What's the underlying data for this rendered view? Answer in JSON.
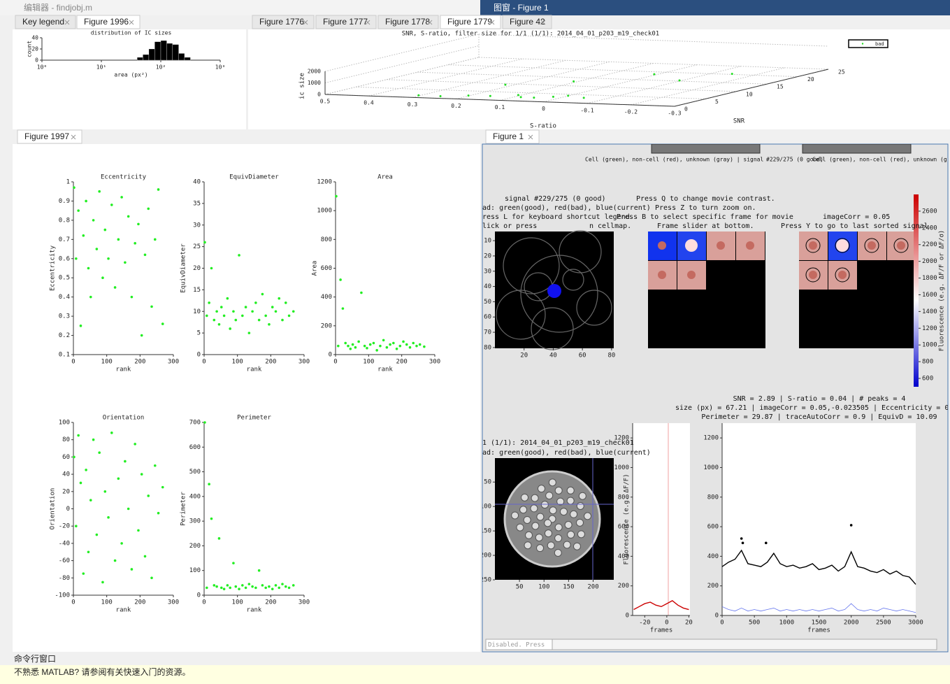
{
  "window": {
    "editor_title": "编辑器 - findjobj.m",
    "figure_title": "图窗 - Figure 1"
  },
  "tabs": {
    "top_left": [
      "Key legend",
      "Figure 1996"
    ],
    "top_right": [
      "Figure 1776",
      "Figure 1777",
      "Figure 1778",
      "Figure 1779",
      "Figure 42"
    ],
    "middle_left": [
      "Figure 1997"
    ],
    "middle_right": [
      "Figure 1"
    ]
  },
  "histogram": {
    "type": "bar",
    "title": "distribution of IC sizes",
    "xlabel": "area (px²)",
    "ylabel": "count",
    "bins": [
      40,
      50,
      63,
      79,
      100,
      126,
      158,
      200,
      251,
      316
    ],
    "values": [
      5,
      10,
      20,
      33,
      35,
      30,
      28,
      12,
      5
    ],
    "color": "#000000",
    "xscale": "log",
    "xlim": [
      1,
      1000
    ],
    "xticks": [
      {
        "value": 1,
        "label": "10⁰"
      },
      {
        "value": 10,
        "label": "10¹"
      },
      {
        "value": 100,
        "label": "10²"
      },
      {
        "value": 1000,
        "label": "10³"
      }
    ],
    "ylim": [
      0,
      40
    ],
    "yticks": [
      0,
      20,
      40
    ]
  },
  "scatter3d": {
    "type": "scatter3d",
    "title": "SNR, S-ratio, filter size for 1/1 (1/1): 2014_04_01_p203_m19_check01",
    "xlabel": "S-ratio",
    "ylabel": "SNR",
    "zlabel": "ic size",
    "series": [
      {
        "name": "bad",
        "color": "#22dd22",
        "x": [
          0.3,
          0.25,
          0.2,
          0.15,
          0.1,
          0.08,
          0.05,
          0.02,
          0,
          -0.05,
          0.1,
          0,
          -0.1,
          0.2,
          -0.15
        ],
        "y": [
          1,
          1,
          2,
          2,
          3,
          2,
          2,
          3,
          4,
          3,
          12,
          18,
          15,
          8,
          20
        ],
        "z": [
          50,
          40,
          30,
          60,
          80,
          50,
          40,
          30,
          20,
          30,
          100,
          80,
          60,
          200,
          50
        ]
      }
    ],
    "xlim": [
      -0.3,
      0.5
    ],
    "xticks": [
      0.5,
      0.4,
      0.3,
      0.2,
      0.1,
      0,
      -0.1,
      -0.2,
      -0.3
    ],
    "ylim": [
      0,
      25
    ],
    "yticks": [
      0,
      5,
      10,
      15,
      20,
      25
    ],
    "zlim": [
      0,
      2000
    ],
    "zticks": [
      0,
      1000,
      2000
    ]
  },
  "figure_1997": [
    {
      "type": "scatter",
      "title": "Eccentricity",
      "xlabel": "rank",
      "ylabel": "Eccentricity",
      "color": "#22ee22",
      "x": [
        2,
        8,
        15,
        22,
        30,
        38,
        45,
        52,
        60,
        70,
        78,
        88,
        95,
        105,
        115,
        125,
        135,
        145,
        155,
        165,
        175,
        185,
        195,
        205,
        215,
        225,
        235,
        245,
        255,
        268
      ],
      "values": [
        0.97,
        0.6,
        0.85,
        0.25,
        0.72,
        0.9,
        0.55,
        0.4,
        0.8,
        0.65,
        0.95,
        0.5,
        0.75,
        0.6,
        0.88,
        0.45,
        0.7,
        0.92,
        0.58,
        0.82,
        0.4,
        0.68,
        0.78,
        0.2,
        0.62,
        0.86,
        0.35,
        0.7,
        0.96,
        0.26
      ],
      "xlim": [
        0,
        300
      ],
      "xticks": [
        0,
        100,
        200,
        300
      ],
      "ylim": [
        0.1,
        1
      ],
      "yticks": [
        0.1,
        0.2,
        0.3,
        0.4,
        0.5,
        0.6,
        0.7,
        0.8,
        0.9,
        1
      ]
    },
    {
      "type": "scatter",
      "title": "EquivDiameter",
      "xlabel": "rank",
      "ylabel": "EquivDiameter",
      "color": "#22ee22",
      "x": [
        2,
        8,
        15,
        22,
        30,
        38,
        45,
        52,
        60,
        70,
        78,
        88,
        95,
        105,
        115,
        125,
        135,
        145,
        155,
        165,
        175,
        185,
        195,
        205,
        215,
        225,
        235,
        245,
        255,
        268
      ],
      "values": [
        26,
        9,
        12,
        20,
        8,
        10,
        7,
        11,
        9,
        13,
        6,
        10,
        8,
        23,
        9,
        11,
        5,
        10,
        12,
        8,
        14,
        9,
        7,
        11,
        10,
        13,
        8,
        12,
        9,
        10
      ],
      "xlim": [
        0,
        300
      ],
      "xticks": [
        0,
        100,
        200,
        300
      ],
      "ylim": [
        0,
        40
      ],
      "yticks": [
        0,
        5,
        10,
        15,
        20,
        25,
        30,
        35,
        40
      ]
    },
    {
      "type": "scatter",
      "title": "Area",
      "xlabel": "rank",
      "ylabel": "Area",
      "color": "#22ee22",
      "x": [
        2,
        8,
        15,
        22,
        30,
        38,
        45,
        52,
        60,
        70,
        78,
        88,
        95,
        105,
        115,
        125,
        135,
        145,
        155,
        165,
        175,
        185,
        195,
        205,
        215,
        225,
        235,
        245,
        255,
        268
      ],
      "values": [
        1100,
        60,
        520,
        320,
        80,
        60,
        40,
        70,
        50,
        90,
        430,
        60,
        45,
        70,
        80,
        30,
        60,
        100,
        50,
        70,
        80,
        40,
        60,
        90,
        70,
        50,
        80,
        60,
        70,
        55
      ],
      "xlim": [
        0,
        300
      ],
      "xticks": [
        0,
        100,
        200,
        300
      ],
      "ylim": [
        0,
        1200
      ],
      "yticks": [
        0,
        200,
        400,
        600,
        800,
        1000,
        1200
      ]
    },
    {
      "type": "scatter",
      "title": "Orientation",
      "xlabel": "rank",
      "ylabel": "Orientation",
      "color": "#22ee22",
      "x": [
        2,
        8,
        15,
        22,
        30,
        38,
        45,
        52,
        60,
        70,
        78,
        88,
        95,
        105,
        115,
        125,
        135,
        145,
        155,
        165,
        175,
        185,
        195,
        205,
        215,
        225,
        235,
        245,
        255,
        268
      ],
      "values": [
        60,
        -20,
        85,
        30,
        -75,
        45,
        -50,
        10,
        80,
        -30,
        65,
        -85,
        20,
        -10,
        88,
        -60,
        35,
        -40,
        55,
        0,
        -70,
        75,
        -25,
        40,
        -55,
        15,
        -80,
        50,
        -5,
        25
      ],
      "xlim": [
        0,
        300
      ],
      "xticks": [
        0,
        100,
        200,
        300
      ],
      "ylim": [
        -100,
        100
      ],
      "yticks": [
        -100,
        -80,
        -60,
        -40,
        -20,
        0,
        20,
        40,
        60,
        80,
        100
      ]
    },
    {
      "type": "scatter",
      "title": "Perimeter",
      "xlabel": "rank",
      "ylabel": "Perimeter",
      "color": "#22ee22",
      "x": [
        2,
        8,
        15,
        22,
        30,
        38,
        45,
        52,
        60,
        70,
        78,
        88,
        95,
        105,
        115,
        125,
        135,
        145,
        155,
        165,
        175,
        185,
        195,
        205,
        215,
        225,
        235,
        245,
        255,
        268
      ],
      "values": [
        700,
        30,
        450,
        310,
        40,
        35,
        230,
        30,
        25,
        40,
        30,
        130,
        35,
        25,
        40,
        30,
        45,
        35,
        30,
        100,
        40,
        30,
        35,
        25,
        40,
        30,
        45,
        35,
        30,
        40
      ],
      "xlim": [
        0,
        300
      ],
      "xticks": [
        0,
        100,
        200,
        300
      ],
      "ylim": [
        0,
        700
      ],
      "yticks": [
        0,
        100,
        200,
        300,
        400,
        500,
        600,
        700
      ]
    }
  ],
  "figure_1": {
    "texts": [
      "Cell (green), non-cell (red), unknown (gray) | signal",
      "#229/275 (0 good)",
      "Cell (green), non-cell (red), unknown (gray).",
      "signal #229/275 (0 good)",
      "ad: green(good), red(bad), blue(current)",
      "ress L for keyboard shortcut legend",
      "lick or press",
      "n cellmap.",
      "Press Q to change movie contrast.",
      "Press Z to turn zoom on.",
      "Press B to select specific frame for movie",
      "Frame slider at bottom.",
      "imageCorr = 0.05",
      "Press Y to go to last sorted signal.",
      "SNR = 2.89 | S-ratio = 0.04 | # peaks = 4",
      "size (px) = 67.21 | imageCorr = 0.05,-0.023505 | Eccentricity = 0",
      "Perimeter = 29.87 | traceAutoCorr = 0.9 | EquivD = 10.09",
      "1 (1/1): 2014_04_01_p203_m19_check01",
      "ad: green(good), red(bad), blue(current)"
    ],
    "cellmap": {
      "type": "image",
      "xlim": [
        0,
        81.5
      ],
      "xticks": [
        20,
        40,
        60,
        80
      ],
      "ylim": [
        4,
        80.5
      ],
      "yticks": [
        10,
        20,
        30,
        40,
        50,
        60,
        70,
        80
      ],
      "y_direction": "reverse"
    },
    "colorbar": {
      "type": "colorbar",
      "label": "Fluorescence (e.g. ΔF/F or ΔF/σ)",
      "ylim": [
        500,
        2800
      ],
      "yticks": [
        600,
        800,
        1000,
        1200,
        1400,
        1600,
        1800,
        2000,
        2200,
        2400,
        2600
      ]
    },
    "movie": {
      "type": "image",
      "xlim": [
        0,
        242
      ],
      "xticks": [
        50,
        100,
        150,
        200
      ],
      "ylim": [
        1,
        250
      ],
      "yticks": [
        50,
        100,
        150,
        200,
        250
      ],
      "y_direction": "reverse"
    },
    "mean_trace": {
      "type": "line",
      "ylabel": "Fluorescence (e.g. ΔF/F)",
      "xlabel": "frames",
      "x": [
        -30,
        -25,
        -20,
        -15,
        -10,
        -5,
        0,
        5,
        10,
        15,
        20
      ],
      "series": [
        {
          "color": "#cc0000",
          "values": [
            40,
            60,
            80,
            90,
            70,
            60,
            80,
            100,
            70,
            50,
            40
          ]
        }
      ],
      "xlim": [
        -31,
        21
      ],
      "xticks": [
        -20,
        0,
        20
      ],
      "ylim": [
        0,
        1300
      ],
      "yticks": [
        0,
        200,
        400,
        600,
        800,
        1000,
        1200
      ]
    },
    "trace": {
      "type": "line",
      "xlabel": "frames",
      "x": [
        0,
        100,
        200,
        300,
        400,
        500,
        600,
        700,
        800,
        900,
        1000,
        1100,
        1200,
        1300,
        1400,
        1500,
        1600,
        1700,
        1800,
        1900,
        2000,
        2100,
        2200,
        2300,
        2400,
        2500,
        2600,
        2700,
        2800,
        2900,
        3000
      ],
      "series": [
        {
          "color": "#000000",
          "values": [
            330,
            360,
            380,
            440,
            350,
            340,
            330,
            360,
            420,
            350,
            330,
            340,
            320,
            330,
            350,
            310,
            320,
            340,
            300,
            330,
            430,
            330,
            320,
            300,
            290,
            310,
            280,
            300,
            270,
            260,
            210
          ]
        },
        {
          "color": "#6677ee",
          "values": [
            60,
            40,
            30,
            50,
            30,
            40,
            30,
            40,
            50,
            30,
            40,
            30,
            40,
            30,
            40,
            30,
            40,
            50,
            30,
            40,
            80,
            40,
            30,
            40,
            30,
            50,
            40,
            30,
            40,
            30,
            20
          ]
        }
      ],
      "peaks": {
        "x": [
          300,
          320,
          680,
          2000
        ],
        "values": [
          520,
          490,
          490,
          610
        ]
      },
      "xlim": [
        0,
        3000
      ],
      "xticks": [
        0,
        500,
        1000,
        1500,
        2000,
        2500,
        3000
      ],
      "ylim": [
        0,
        1300
      ],
      "yticks": [
        0,
        200,
        400,
        600,
        800,
        1000,
        1200
      ]
    },
    "input_hint": "Disabled. Press"
  },
  "command_window": {
    "title": "命令行窗口",
    "hint": "不熟悉 MATLAB? 请参阅有关快速入门的资源。"
  }
}
